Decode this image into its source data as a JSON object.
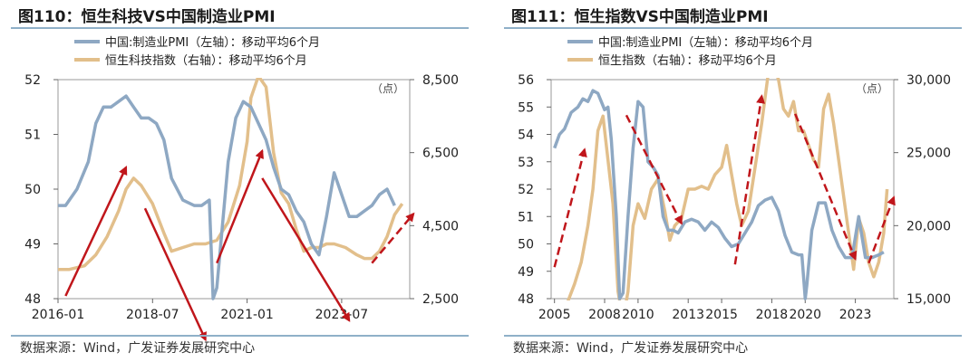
{
  "source_label": "数据来源：Wind，广发证券发展研究中心",
  "colors": {
    "pmi": "#8ea8c3",
    "index": "#e2bf8b",
    "arrow": "#c0161b",
    "line": "#8fb0c8"
  },
  "chart_data": [
    {
      "type": "line",
      "title": "图110：恒生科技VS中国制造业PMI",
      "legend": [
        "中国:制造业PMI（左轴）：移动平均6个月",
        "恒生科技指数（右轴）：移动平均6个月"
      ],
      "right_unit": "（点）",
      "x_ticks": [
        "2016-01",
        "2018-07",
        "2021-01",
        "2023-07"
      ],
      "x_range": [
        2016.0,
        2025.3
      ],
      "y_left": {
        "range": [
          48,
          52
        ],
        "ticks": [
          "48",
          "49",
          "50",
          "51",
          "52"
        ]
      },
      "y_right": {
        "range": [
          2500,
          8500
        ],
        "ticks": [
          "2,500",
          "4,500",
          "6,500",
          "8,500"
        ]
      },
      "series": [
        {
          "name": "中国:制造业PMI（左轴）：移动平均6个月",
          "axis": "left",
          "x": [
            2016.0,
            2016.2,
            2016.5,
            2016.8,
            2017.0,
            2017.2,
            2017.4,
            2017.6,
            2017.8,
            2018.0,
            2018.2,
            2018.4,
            2018.6,
            2018.8,
            2019.0,
            2019.3,
            2019.6,
            2019.8,
            2020.0,
            2020.1,
            2020.2,
            2020.5,
            2020.7,
            2020.9,
            2021.1,
            2021.3,
            2021.5,
            2021.7,
            2021.9,
            2022.1,
            2022.3,
            2022.5,
            2022.7,
            2022.9,
            2023.1,
            2023.3,
            2023.5,
            2023.7,
            2023.9,
            2024.1,
            2024.3,
            2024.5,
            2024.7,
            2024.9
          ],
          "values": [
            49.7,
            49.7,
            50.0,
            50.5,
            51.2,
            51.5,
            51.5,
            51.6,
            51.7,
            51.5,
            51.3,
            51.3,
            51.2,
            50.9,
            50.2,
            49.8,
            49.7,
            49.7,
            49.8,
            48.0,
            48.2,
            50.5,
            51.3,
            51.6,
            51.5,
            51.2,
            50.9,
            50.4,
            50.0,
            49.9,
            49.6,
            49.4,
            49.0,
            48.8,
            49.5,
            50.3,
            49.9,
            49.5,
            49.5,
            49.6,
            49.7,
            49.9,
            50.0,
            49.7
          ]
        },
        {
          "name": "恒生科技指数（右轴）：移动平均6个月",
          "axis": "right",
          "x": [
            2016.0,
            2016.3,
            2016.7,
            2017.0,
            2017.3,
            2017.6,
            2017.8,
            2018.0,
            2018.2,
            2018.5,
            2018.8,
            2019.0,
            2019.3,
            2019.6,
            2019.9,
            2020.2,
            2020.5,
            2020.8,
            2021.0,
            2021.1,
            2021.3,
            2021.5,
            2021.7,
            2021.9,
            2022.1,
            2022.3,
            2022.5,
            2022.7,
            2022.9,
            2023.1,
            2023.3,
            2023.6,
            2023.9,
            2024.1,
            2024.3,
            2024.5,
            2024.7,
            2024.9,
            2025.1
          ],
          "values": [
            3300,
            3300,
            3400,
            3700,
            4200,
            4900,
            5500,
            5800,
            5600,
            5100,
            4300,
            3800,
            3900,
            4000,
            4000,
            4100,
            4600,
            5600,
            6800,
            8000,
            8600,
            8300,
            6500,
            5400,
            5100,
            4400,
            3800,
            3900,
            3900,
            4000,
            4000,
            3900,
            3700,
            3600,
            3600,
            3800,
            4200,
            4800,
            5100
          ]
        }
      ],
      "arrows": [
        {
          "from": [
            2016.2,
            48.05
          ],
          "to": [
            2017.8,
            50.4
          ],
          "style": "solid"
        },
        {
          "from": [
            2018.3,
            49.65
          ],
          "to": [
            2019.9,
            47.25
          ],
          "style": "solid"
        },
        {
          "from": [
            2020.2,
            48.65
          ],
          "to": [
            2021.4,
            50.7
          ],
          "style": "solid"
        },
        {
          "from": [
            2021.4,
            50.2
          ],
          "to": [
            2023.7,
            47.6
          ],
          "style": "solid"
        },
        {
          "from": [
            2024.3,
            48.65
          ],
          "to": [
            2025.4,
            49.55
          ],
          "style": "dashed"
        }
      ]
    },
    {
      "type": "line",
      "title": "图111：恒生指数VS中国制造业PMI",
      "legend": [
        "中国:制造业PMI（左轴）：移动平均6个月",
        "恒生指数（右轴）：移动平均6个月"
      ],
      "right_unit": "（点）",
      "x_ticks": [
        "2005",
        "2008",
        "2010",
        "2013",
        "2015",
        "2018",
        "2020",
        "2023"
      ],
      "x_range": [
        2004.8,
        2025.3
      ],
      "y_left": {
        "range": [
          48,
          56
        ],
        "ticks": [
          "48",
          "49",
          "50",
          "51",
          "52",
          "53",
          "54",
          "55",
          "56"
        ]
      },
      "y_right": {
        "range": [
          15000,
          30000
        ],
        "ticks": [
          "15,000",
          "20,000",
          "25,000",
          "30,000"
        ]
      },
      "series": [
        {
          "name": "中国:制造业PMI（左轴）：移动平均6个月",
          "axis": "left",
          "x": [
            2005.0,
            2005.3,
            2005.6,
            2006.0,
            2006.4,
            2006.7,
            2007.0,
            2007.3,
            2007.6,
            2007.8,
            2008.0,
            2008.2,
            2008.4,
            2008.7,
            2008.9,
            2009.1,
            2009.4,
            2009.7,
            2010.0,
            2010.3,
            2010.6,
            2010.9,
            2011.2,
            2011.5,
            2011.8,
            2012.1,
            2012.4,
            2012.8,
            2013.2,
            2013.6,
            2014.0,
            2014.4,
            2014.8,
            2015.2,
            2015.6,
            2016.0,
            2016.4,
            2016.8,
            2017.2,
            2017.6,
            2018.0,
            2018.4,
            2018.8,
            2019.2,
            2019.6,
            2019.8,
            2020.0,
            2020.1,
            2020.4,
            2020.8,
            2021.2,
            2021.6,
            2022.0,
            2022.4,
            2022.8,
            2023.2,
            2023.6,
            2024.0,
            2024.4,
            2024.7
          ],
          "values": [
            53.5,
            54.0,
            54.2,
            54.8,
            55.0,
            55.3,
            55.2,
            55.6,
            55.5,
            55.2,
            54.9,
            55.0,
            53.8,
            51.0,
            48.0,
            48.2,
            51.0,
            53.5,
            55.2,
            55.0,
            53.0,
            52.8,
            52.5,
            51.0,
            50.5,
            50.5,
            50.4,
            50.8,
            50.9,
            50.8,
            50.5,
            50.8,
            50.6,
            50.2,
            49.9,
            50.0,
            50.4,
            50.8,
            51.4,
            51.6,
            51.7,
            51.2,
            50.3,
            49.7,
            49.6,
            49.6,
            48.0,
            48.5,
            50.5,
            51.5,
            51.5,
            50.5,
            49.9,
            49.5,
            49.5,
            51.0,
            49.5,
            49.5,
            49.6,
            49.7
          ]
        },
        {
          "name": "恒生指数（右轴）：移动平均6个月",
          "axis": "right",
          "x": [
            2004.9,
            2005.3,
            2005.8,
            2006.2,
            2006.6,
            2007.0,
            2007.3,
            2007.6,
            2007.9,
            2008.2,
            2008.5,
            2008.8,
            2009.1,
            2009.4,
            2009.7,
            2010.0,
            2010.4,
            2010.8,
            2011.2,
            2011.6,
            2011.9,
            2012.2,
            2012.6,
            2013.0,
            2013.4,
            2013.8,
            2014.2,
            2014.6,
            2015.0,
            2015.3,
            2015.6,
            2015.9,
            2016.2,
            2016.6,
            2017.0,
            2017.4,
            2017.8,
            2018.1,
            2018.4,
            2018.7,
            2019.0,
            2019.3,
            2019.6,
            2019.9,
            2020.2,
            2020.5,
            2020.8,
            2021.1,
            2021.4,
            2021.7,
            2022.0,
            2022.3,
            2022.6,
            2022.9,
            2023.2,
            2023.5,
            2023.8,
            2024.1,
            2024.4,
            2024.7,
            2024.9
          ],
          "values": [
            13800,
            14000,
            14800,
            16000,
            17500,
            20000,
            22500,
            26500,
            27500,
            24500,
            21500,
            15500,
            13500,
            15500,
            20000,
            21500,
            20500,
            22500,
            23200,
            21000,
            19000,
            20000,
            20500,
            22500,
            22500,
            22700,
            22500,
            23500,
            24000,
            25500,
            23500,
            21500,
            20000,
            21000,
            24000,
            27000,
            30500,
            31000,
            30000,
            28000,
            27500,
            28500,
            26500,
            26500,
            25500,
            24500,
            24000,
            28000,
            29000,
            27000,
            24500,
            22000,
            19500,
            17000,
            20500,
            19500,
            17500,
            16500,
            17500,
            19500,
            22500
          ]
        }
      ],
      "arrows": [
        {
          "from": [
            2005.0,
            49.15
          ],
          "to": [
            2006.8,
            53.45
          ],
          "style": "dashed"
        },
        {
          "from": [
            2009.3,
            54.7
          ],
          "to": [
            2012.6,
            50.75
          ],
          "style": "dashed"
        },
        {
          "from": [
            2015.8,
            49.25
          ],
          "to": [
            2017.4,
            55.4
          ],
          "style": "dashed"
        },
        {
          "from": [
            2019.4,
            54.75
          ],
          "to": [
            2023.0,
            49.45
          ],
          "style": "dashed"
        },
        {
          "from": [
            2023.8,
            49.3
          ],
          "to": [
            2025.3,
            51.7
          ],
          "style": "dashed"
        }
      ]
    }
  ]
}
